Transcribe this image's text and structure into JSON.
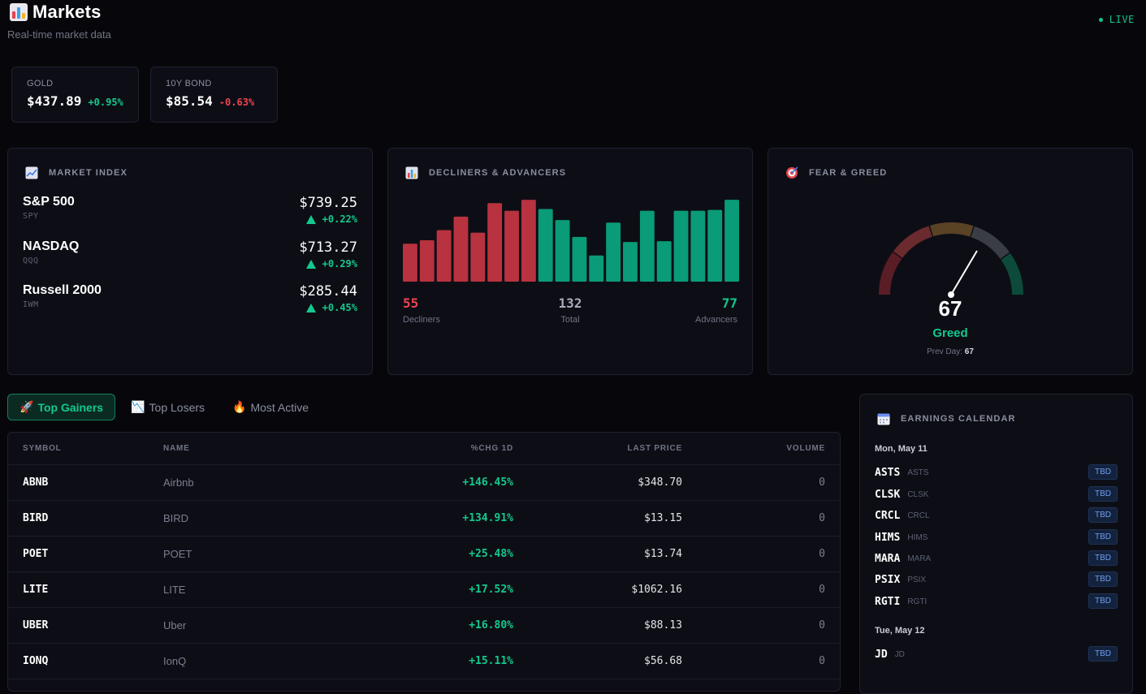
{
  "header": {
    "title": "Markets",
    "subtitle": "Real-time market data",
    "live": "LIVE"
  },
  "tickers": [
    {
      "label": "GOLD",
      "price": "$437.89",
      "change": "+0.95%",
      "dir": "up"
    },
    {
      "label": "10Y BOND",
      "price": "$85.54",
      "change": "-0.63%",
      "dir": "down"
    }
  ],
  "market_index": {
    "title": "MARKET INDEX",
    "items": [
      {
        "name": "S&P 500",
        "symbol": "SPY",
        "price": "$739.25",
        "change": "+0.22%"
      },
      {
        "name": "NASDAQ",
        "symbol": "QQQ",
        "price": "$713.27",
        "change": "+0.29%"
      },
      {
        "name": "Russell 2000",
        "symbol": "IWM",
        "price": "$285.44",
        "change": "+0.45%"
      }
    ]
  },
  "breadth": {
    "title": "DECLINERS & ADVANCERS",
    "decliners_value": "55",
    "decliners_label": "Decliners",
    "total_value": "132",
    "total_label": "Total",
    "advancers_value": "77",
    "advancers_label": "Advancers",
    "colors": {
      "decliner": "#b8323f",
      "advancer": "#0a9b78"
    }
  },
  "chart_data": {
    "type": "bar",
    "series": [
      {
        "values": [
          45,
          49,
          61,
          77,
          58,
          93,
          84,
          97
        ],
        "kind": "decliner"
      },
      {
        "values": [
          86,
          73,
          53,
          31,
          70,
          47,
          84,
          48,
          84,
          84,
          85,
          97
        ],
        "kind": "advancer"
      }
    ],
    "ylim": [
      0,
      100
    ],
    "grid": false
  },
  "fear_greed": {
    "title": "FEAR & GREED",
    "value": "67",
    "value_num": 67,
    "label": "Greed",
    "prev_label": "Prev Day:",
    "prev_value": "67"
  },
  "tabs": [
    {
      "label": "Top Gainers",
      "icon": "rocket-icon",
      "active": true
    },
    {
      "label": "Top Losers",
      "icon": "chart-down-icon",
      "active": false
    },
    {
      "label": "Most Active",
      "icon": "fire-icon",
      "active": false
    }
  ],
  "table": {
    "columns": {
      "symbol": "SYMBOL",
      "name": "NAME",
      "chg": "%CHG 1D",
      "price": "LAST PRICE",
      "volume": "VOLUME"
    },
    "rows": [
      {
        "symbol": "ABNB",
        "name": "Airbnb",
        "chg": "+146.45%",
        "price": "$348.70",
        "volume": "0"
      },
      {
        "symbol": "BIRD",
        "name": "BIRD",
        "chg": "+134.91%",
        "price": "$13.15",
        "volume": "0"
      },
      {
        "symbol": "POET",
        "name": "POET",
        "chg": "+25.48%",
        "price": "$13.74",
        "volume": "0"
      },
      {
        "symbol": "LITE",
        "name": "LITE",
        "chg": "+17.52%",
        "price": "$1062.16",
        "volume": "0"
      },
      {
        "symbol": "UBER",
        "name": "Uber",
        "chg": "+16.80%",
        "price": "$88.13",
        "volume": "0"
      },
      {
        "symbol": "IONQ",
        "name": "IonQ",
        "chg": "+15.11%",
        "price": "$56.68",
        "volume": "0"
      }
    ]
  },
  "earnings": {
    "title": "EARNINGS CALENDAR",
    "badge": "TBD",
    "days": [
      {
        "date": "Mon, May 11",
        "items": [
          {
            "ticker": "ASTS",
            "sub": "ASTS"
          },
          {
            "ticker": "CLSK",
            "sub": "CLSK"
          },
          {
            "ticker": "CRCL",
            "sub": "CRCL"
          },
          {
            "ticker": "HIMS",
            "sub": "HIMS"
          },
          {
            "ticker": "MARA",
            "sub": "MARA"
          },
          {
            "ticker": "PSIX",
            "sub": "PSIX"
          },
          {
            "ticker": "RGTI",
            "sub": "RGTI"
          }
        ]
      },
      {
        "date": "Tue, May 12",
        "items": [
          {
            "ticker": "JD",
            "sub": "JD"
          }
        ]
      }
    ]
  }
}
